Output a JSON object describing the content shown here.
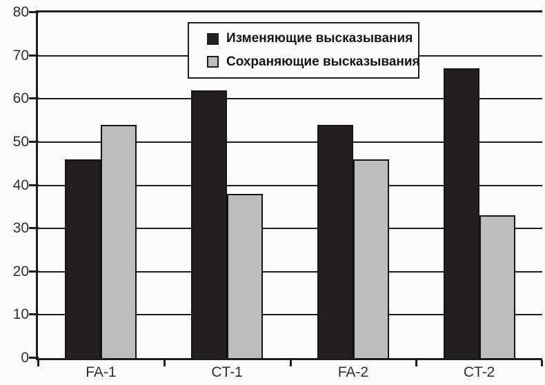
{
  "chart_data": {
    "type": "bar",
    "title": "",
    "categories": [
      "FA-1",
      "CT-1",
      "FA-2",
      "CT-2"
    ],
    "series": [
      {
        "name": "Изменяющие высказывания",
        "color": "#231f20",
        "values": [
          46,
          62,
          54,
          67
        ]
      },
      {
        "name": "Сохраняющие высказывания",
        "color": "#bdbdbd",
        "values": [
          54,
          38,
          46,
          33
        ]
      }
    ],
    "ylim": [
      0,
      80
    ],
    "yticks": [
      0,
      10,
      20,
      30,
      40,
      50,
      60,
      70,
      80
    ],
    "xlabel": "",
    "ylabel": "",
    "grid": true,
    "legend_position": "top-center",
    "legend_border": true
  },
  "style": {
    "background": "#fcfcfc",
    "axis_color": "#1c1c1c",
    "grid_color": "#1c1c1c",
    "text_color": "#2e2e2e"
  }
}
